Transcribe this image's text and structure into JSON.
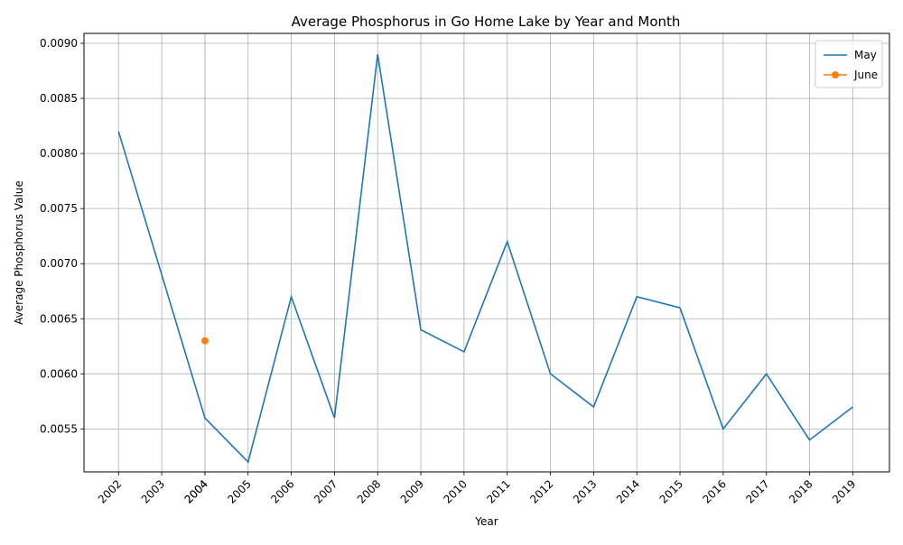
{
  "chart_data": {
    "type": "line",
    "title": "Average Phosphorus in Go Home Lake by Year and Month",
    "xlabel": "Year",
    "ylabel": "Average Phosphorus Value",
    "x_ticks": [
      "2002",
      "2003",
      "2004",
      "2004",
      "2005",
      "2006",
      "2007",
      "2008",
      "2009",
      "2010",
      "2011",
      "2012",
      "2013",
      "2014",
      "2015",
      "2016",
      "2017",
      "2018",
      "2019"
    ],
    "y_ticks": [
      "0.0055",
      "0.0060",
      "0.0065",
      "0.0070",
      "0.0075",
      "0.0080",
      "0.0085",
      "0.0090"
    ],
    "y_tick_values": [
      0.0055,
      0.006,
      0.0065,
      0.007,
      0.0075,
      0.008,
      0.0085,
      0.009
    ],
    "ylim": [
      0.00511,
      0.00909
    ],
    "xlim": [
      2001.2,
      2019.85
    ],
    "grid": true,
    "legend_position": "top-right",
    "series": [
      {
        "name": "May",
        "color": "#1f77b4",
        "marker": "none",
        "x": [
          2002,
          2003,
          2004,
          2005,
          2006,
          2007,
          2008,
          2009,
          2010,
          2011,
          2012,
          2013,
          2014,
          2015,
          2016,
          2017,
          2018,
          2019
        ],
        "values": [
          0.0082,
          0.0069,
          0.0056,
          0.0052,
          0.0067,
          0.0056,
          0.0089,
          0.0064,
          0.0062,
          0.0072,
          0.006,
          0.0057,
          0.0067,
          0.0066,
          0.0055,
          0.006,
          0.0054,
          0.0057
        ]
      },
      {
        "name": "June",
        "color": "#ff7f0e",
        "marker": "circle",
        "x": [
          2004
        ],
        "values": [
          0.0063
        ]
      }
    ]
  }
}
